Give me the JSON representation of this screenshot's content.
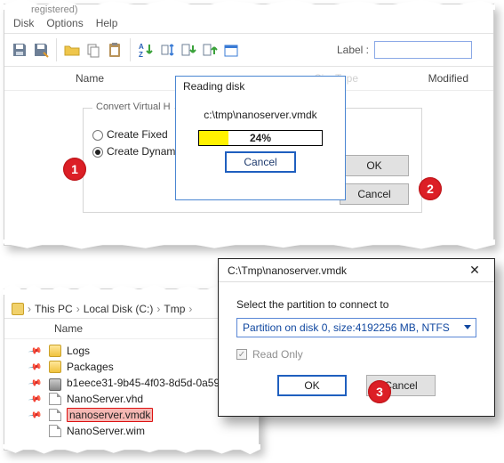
{
  "menubar": {
    "items": [
      "Disk",
      "Options",
      "Help"
    ],
    "pre_title_fragment": "registered)"
  },
  "toolbar": {
    "label_text": "Label :",
    "icons": [
      {
        "name": "save-icon",
        "fill": "#7e8fa6"
      },
      {
        "name": "save-as-icon",
        "fill": "#7e8fa6"
      },
      {
        "name": "folder-open-icon",
        "fill": "#efc64b"
      },
      {
        "name": "copy-icon",
        "fill": "#7e8fa6"
      },
      {
        "name": "paste-icon",
        "fill": "#b8935a"
      },
      {
        "name": "sort-az-down-icon",
        "fill": "#3a7bd5"
      },
      {
        "name": "move-up-down-icon",
        "fill": "#3a7bd5"
      },
      {
        "name": "arrow-down-green-icon",
        "fill": "#3aa23a"
      },
      {
        "name": "arrow-up-green-icon",
        "fill": "#3aa23a"
      },
      {
        "name": "calendar-icon",
        "fill": "#3a7bd5"
      }
    ]
  },
  "columns": {
    "c1": "Name",
    "c2": "Size",
    "c3": "Type",
    "c4": "Modified"
  },
  "convert": {
    "group_title": "Convert Virtual H",
    "radio1": "Create Fixed",
    "radio2": "Create Dynam",
    "ok": "OK",
    "cancel": "Cancel"
  },
  "reading": {
    "title": "Reading disk",
    "path": "c:\\tmp\\nanoserver.vmdk",
    "pct_value": 24,
    "pct_label": "24%",
    "cancel": "Cancel",
    "bar_color": "#fff200"
  },
  "explorer": {
    "crumbs": [
      "This PC",
      "Local Disk (C:)",
      "Tmp"
    ],
    "name_col": "Name",
    "items": [
      {
        "label": "Logs",
        "type": "folder"
      },
      {
        "label": "Packages",
        "type": "folder"
      },
      {
        "label": "b1eece31-9b45-4f03-8d5d-0a597…",
        "type": "disk"
      },
      {
        "label": "NanoServer.vhd",
        "type": "file"
      },
      {
        "label": "nanoserver.vmdk",
        "type": "file",
        "selected": true
      },
      {
        "label": "NanoServer.wim",
        "type": "file"
      }
    ]
  },
  "select_dialog": {
    "title": "C:\\Tmp\\nanoserver.vmdk",
    "prompt": "Select the partition to connect to",
    "option": "Partition on disk 0, size:4192256 MB, NTFS",
    "readonly": "Read Only",
    "ok": "OK",
    "cancel": "Cancel"
  },
  "markers": {
    "m1": "1",
    "m2": "2",
    "m3": "3"
  }
}
